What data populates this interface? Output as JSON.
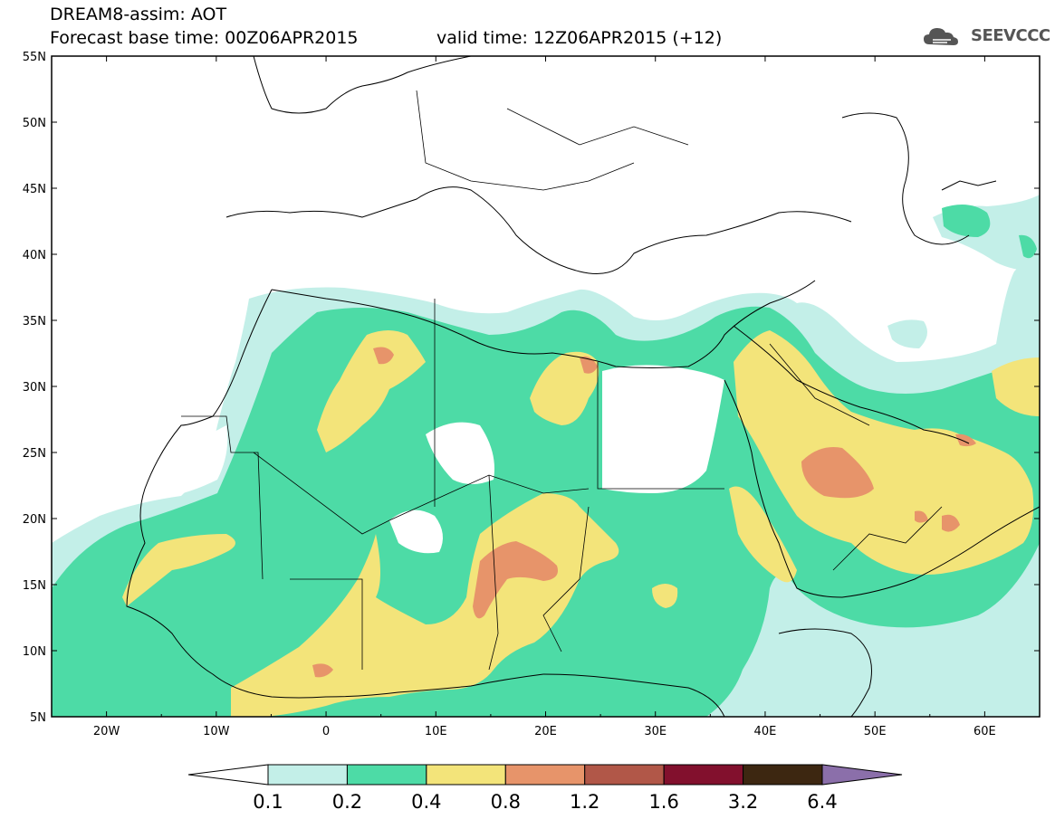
{
  "header": {
    "title": "DREAM8-assim: AOT",
    "base_time": "Forecast base time: 00Z06APR2015",
    "valid_time": "valid time: 12Z06APR2015 (+12)",
    "logo_text": "SEEVCCC",
    "logo_icon": "cloud-logo-icon"
  },
  "map": {
    "lon_range": [
      -25,
      65
    ],
    "lat_range": [
      5,
      55
    ],
    "lat_labels": [
      "55N",
      "50N",
      "45N",
      "40N",
      "35N",
      "30N",
      "25N",
      "20N",
      "15N",
      "10N",
      "5N"
    ],
    "lon_labels": [
      "20W",
      "10W",
      "0",
      "10E",
      "20E",
      "30E",
      "40E",
      "50E",
      "60E"
    ]
  },
  "colorbar": {
    "colors": [
      "#c3efe8",
      "#4ddba6",
      "#f3e47a",
      "#e7946a",
      "#b15748",
      "#82102d",
      "#3d2711",
      "#8b6faa"
    ],
    "low_color": "#ffffff",
    "labels": [
      "0.1",
      "0.2",
      "0.4",
      "0.8",
      "1.2",
      "1.6",
      "3.2",
      "6.4"
    ]
  }
}
